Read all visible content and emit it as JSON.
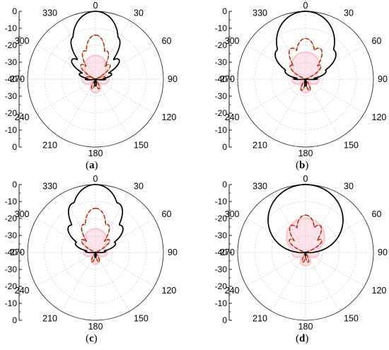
{
  "chart_data": [
    {
      "type": "polar",
      "panel_label": "a",
      "angle_ticks": [
        "0",
        "30",
        "60",
        "90",
        "120",
        "150",
        "180",
        "210",
        "240",
        "270",
        "300",
        "330"
      ],
      "radial_ticks": [
        "0",
        "-10",
        "-20",
        "-30",
        "-40",
        "-30",
        "-20",
        "-10",
        "0"
      ],
      "radial_range_db": [
        -40,
        0
      ],
      "grid": true,
      "series": [
        {
          "style": "solid-black",
          "lobes": [
            {
              "angle": 0,
              "level": 0,
              "width": 12
            },
            {
              "angle": 28,
              "level": -12,
              "width": 6
            },
            {
              "angle": -28,
              "level": -12,
              "width": 6
            },
            {
              "angle": 50,
              "level": -22,
              "width": 7
            },
            {
              "angle": -50,
              "level": -22,
              "width": 7
            },
            {
              "angle": 72,
              "level": -30,
              "width": 8
            },
            {
              "angle": -72,
              "level": -30,
              "width": 8
            },
            {
              "angle": 90,
              "level": -34,
              "width": 6
            },
            {
              "angle": -90,
              "level": -34,
              "width": 6
            },
            {
              "angle": 180,
              "level": -36,
              "width": 15
            }
          ],
          "floor": -40
        },
        {
          "style": "dashed-red",
          "lobes": [
            {
              "angle": 0,
              "level": -14,
              "width": 9
            },
            {
              "angle": 22,
              "level": -22,
              "width": 7
            },
            {
              "angle": -22,
              "level": -22,
              "width": 7
            },
            {
              "angle": 45,
              "level": -28,
              "width": 8
            },
            {
              "angle": -45,
              "level": -28,
              "width": 8
            },
            {
              "angle": 80,
              "level": -34,
              "width": 10
            },
            {
              "angle": -80,
              "level": -34,
              "width": 10
            },
            {
              "angle": 160,
              "level": -34,
              "width": 10
            },
            {
              "angle": -160,
              "level": -34,
              "width": 10
            }
          ],
          "floor": -40
        },
        {
          "style": "pink-band",
          "lobes": [
            {
              "angle": 0,
              "level": -26,
              "width": 30
            },
            {
              "angle": 90,
              "level": -32,
              "width": 30
            },
            {
              "angle": -90,
              "level": -32,
              "width": 30
            },
            {
              "angle": 180,
              "level": -32,
              "width": 30
            }
          ],
          "floor": -37
        }
      ]
    },
    {
      "type": "polar",
      "panel_label": "b",
      "angle_ticks": [
        "0",
        "30",
        "60",
        "90",
        "120",
        "150",
        "180",
        "210",
        "240",
        "270",
        "300",
        "330"
      ],
      "radial_ticks": [
        "0",
        "-10",
        "-20",
        "-30",
        "-40",
        "-30",
        "-20",
        "-10",
        "0"
      ],
      "radial_range_db": [
        -40,
        0
      ],
      "grid": true,
      "series": [
        {
          "style": "solid-black",
          "lobes": [
            {
              "angle": 0,
              "level": 0,
              "width": 16
            },
            {
              "angle": 22,
              "level": -7,
              "width": 10
            },
            {
              "angle": -22,
              "level": -7,
              "width": 10
            },
            {
              "angle": 45,
              "level": -16,
              "width": 9
            },
            {
              "angle": -45,
              "level": -16,
              "width": 9
            },
            {
              "angle": 68,
              "level": -27,
              "width": 8
            },
            {
              "angle": -68,
              "level": -27,
              "width": 8
            },
            {
              "angle": 88,
              "level": -33,
              "width": 4
            },
            {
              "angle": -88,
              "level": -33,
              "width": 4
            },
            {
              "angle": 180,
              "level": -36,
              "width": 15
            }
          ],
          "floor": -40
        },
        {
          "style": "dashed-red",
          "lobes": [
            {
              "angle": 0,
              "level": -16,
              "width": 10
            },
            {
              "angle": 25,
              "level": -20,
              "width": 8
            },
            {
              "angle": -25,
              "level": -20,
              "width": 8
            },
            {
              "angle": 48,
              "level": -28,
              "width": 8
            },
            {
              "angle": -48,
              "level": -28,
              "width": 8
            },
            {
              "angle": 160,
              "level": -33,
              "width": 10
            },
            {
              "angle": -160,
              "level": -33,
              "width": 10
            }
          ],
          "floor": -40
        },
        {
          "style": "pink-band",
          "lobes": [
            {
              "angle": 0,
              "level": -24,
              "width": 32
            },
            {
              "angle": 90,
              "level": -32,
              "width": 30
            },
            {
              "angle": -90,
              "level": -32,
              "width": 30
            },
            {
              "angle": 180,
              "level": -32,
              "width": 30
            }
          ],
          "floor": -37
        }
      ]
    },
    {
      "type": "polar",
      "panel_label": "c",
      "angle_ticks": [
        "0",
        "30",
        "60",
        "90",
        "120",
        "150",
        "180",
        "210",
        "240",
        "270",
        "300",
        "330"
      ],
      "radial_ticks": [
        "0",
        "-10",
        "-20",
        "-30",
        "-40",
        "-30",
        "-20",
        "-10",
        "0"
      ],
      "radial_range_db": [
        -40,
        0
      ],
      "grid": true,
      "series": [
        {
          "style": "solid-black",
          "lobes": [
            {
              "angle": 0,
              "level": 0,
              "width": 12
            },
            {
              "angle": 25,
              "level": -8,
              "width": 7
            },
            {
              "angle": -25,
              "level": -8,
              "width": 7
            },
            {
              "angle": 45,
              "level": -18,
              "width": 8
            },
            {
              "angle": -45,
              "level": -18,
              "width": 8
            },
            {
              "angle": 65,
              "level": -27,
              "width": 8
            },
            {
              "angle": -65,
              "level": -27,
              "width": 8
            },
            {
              "angle": 85,
              "level": -34,
              "width": 6
            },
            {
              "angle": -85,
              "level": -34,
              "width": 6
            },
            {
              "angle": 180,
              "level": -37,
              "width": 15
            }
          ],
          "floor": -40
        },
        {
          "style": "dashed-red",
          "lobes": [
            {
              "angle": 0,
              "level": -14,
              "width": 10
            },
            {
              "angle": 24,
              "level": -22,
              "width": 7
            },
            {
              "angle": -24,
              "level": -22,
              "width": 7
            },
            {
              "angle": 48,
              "level": -29,
              "width": 8
            },
            {
              "angle": -48,
              "level": -29,
              "width": 8
            },
            {
              "angle": 160,
              "level": -34,
              "width": 10
            },
            {
              "angle": -160,
              "level": -34,
              "width": 10
            }
          ],
          "floor": -40
        },
        {
          "style": "pink-band",
          "lobes": [
            {
              "angle": 0,
              "level": -26,
              "width": 30
            },
            {
              "angle": 90,
              "level": -33,
              "width": 30
            },
            {
              "angle": -90,
              "level": -33,
              "width": 30
            },
            {
              "angle": 180,
              "level": -33,
              "width": 30
            }
          ],
          "floor": -37
        }
      ]
    },
    {
      "type": "polar",
      "panel_label": "d",
      "angle_ticks": [
        "0",
        "30",
        "60",
        "90",
        "120",
        "150",
        "180",
        "210",
        "240",
        "270",
        "300",
        "330"
      ],
      "radial_ticks": [
        "0",
        "-10",
        "-20",
        "-30",
        "-40",
        "-30",
        "-20",
        "-10",
        "0"
      ],
      "radial_range_db": [
        -40,
        0
      ],
      "grid": true,
      "series": [
        {
          "style": "solid-black",
          "lobes": [
            {
              "angle": 0,
              "level": 0,
              "width": 22
            },
            {
              "angle": 30,
              "level": -12,
              "width": 9
            },
            {
              "angle": -30,
              "level": -12,
              "width": 9
            },
            {
              "angle": 52,
              "level": -22,
              "width": 9
            },
            {
              "angle": -52,
              "level": -22,
              "width": 9
            },
            {
              "angle": 72,
              "level": -30,
              "width": 8
            },
            {
              "angle": -72,
              "level": -30,
              "width": 8
            },
            {
              "angle": 88,
              "level": -35,
              "width": 5
            },
            {
              "angle": -88,
              "level": -35,
              "width": 5
            },
            {
              "angle": 180,
              "level": -38,
              "width": 15
            }
          ],
          "floor": -40
        },
        {
          "style": "dashed-red",
          "lobes": [
            {
              "angle": 0,
              "level": -18,
              "width": 11
            },
            {
              "angle": 28,
              "level": -22,
              "width": 8
            },
            {
              "angle": -28,
              "level": -22,
              "width": 8
            },
            {
              "angle": 52,
              "level": -28,
              "width": 8
            },
            {
              "angle": -52,
              "level": -28,
              "width": 8
            },
            {
              "angle": 165,
              "level": -34,
              "width": 10
            },
            {
              "angle": -165,
              "level": -34,
              "width": 10
            }
          ],
          "floor": -40
        },
        {
          "style": "pink-band",
          "lobes": [
            {
              "angle": 0,
              "level": -20,
              "width": 32
            },
            {
              "angle": 90,
              "level": -32,
              "width": 30
            },
            {
              "angle": -90,
              "level": -32,
              "width": 30
            },
            {
              "angle": 180,
              "level": -32,
              "width": 30
            }
          ],
          "floor": -37
        }
      ]
    }
  ],
  "colors": {
    "solid": "#000000",
    "dashed": "#b8261a",
    "dashed_alt": "#8a6a00",
    "pink": "#f6b3c8",
    "grid": "#c6c6c6",
    "axis": "#000000"
  }
}
